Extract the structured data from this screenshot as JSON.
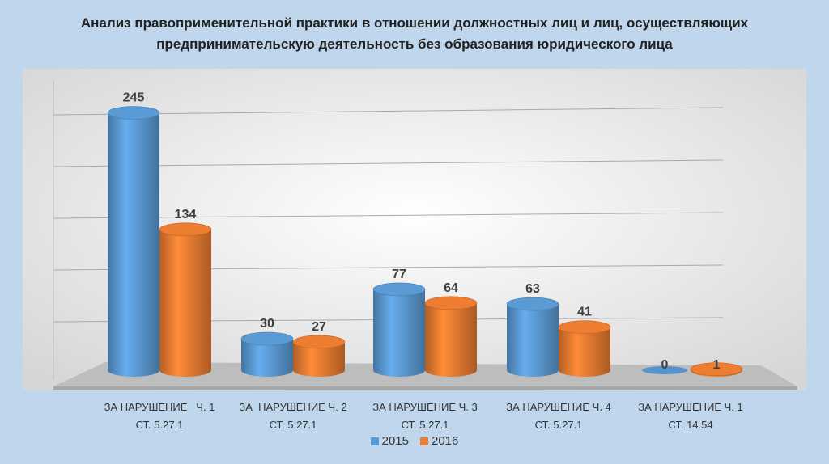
{
  "title_lines": [
    "Анализ правоприменительной практики в отношении должностных лиц и лиц, осуществляющих",
    "предпринимательскую деятельность без образования юридического лица"
  ],
  "chart_data": {
    "type": "bar",
    "style": "3d-cylinder",
    "categories": [
      [
        "ЗА НАРУШЕНИЕ   Ч. 1",
        "СТ. 5.27.1"
      ],
      [
        "ЗА  НАРУШЕНИЕ Ч. 2",
        "СТ. 5.27.1"
      ],
      [
        "ЗА НАРУШЕНИЕ Ч. 3",
        "СТ. 5.27.1"
      ],
      [
        "ЗА НАРУШЕНИЕ Ч. 4",
        "СТ. 5.27.1"
      ],
      [
        "ЗА НАРУШЕНИЕ Ч. 1",
        "СТ. 14.54"
      ]
    ],
    "series": [
      {
        "name": "2015",
        "values": [
          245,
          30,
          77,
          63,
          0
        ],
        "color": "#5b9bd5"
      },
      {
        "name": "2016",
        "values": [
          134,
          27,
          64,
          41,
          1
        ],
        "color": "#ed7d31"
      }
    ],
    "ylim": [
      0,
      300
    ],
    "grid": true,
    "legend": "bottom"
  }
}
